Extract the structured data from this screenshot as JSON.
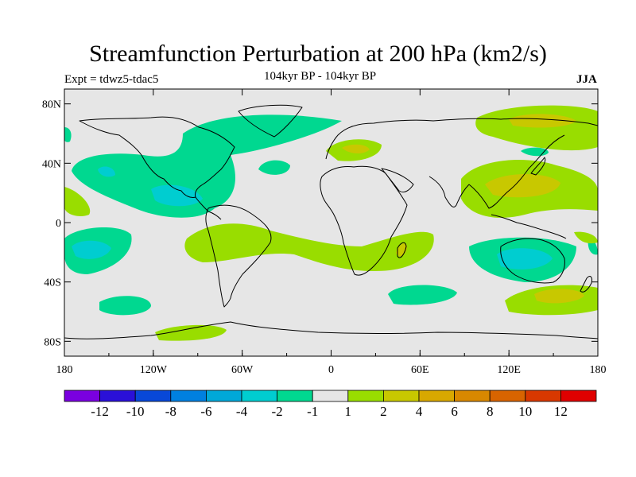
{
  "title": "Streamfunction Perturbation at 200 hPa (km2/s)",
  "experiment": "Expt = tdwz5-tdac5",
  "subtitle": "104kyr BP - 104kyr BP",
  "season": "JJA",
  "colors": {
    "land_ocean_bg": "#e6e6e6",
    "neg_1": "#00d890",
    "neg_2": "#00cdd0",
    "pos_1": "#99dd00",
    "pos_2": "#c8c800",
    "pos_3": "#d8a800"
  },
  "map": {
    "lon_range": [
      -180,
      180
    ],
    "lat_range": [
      -90,
      90
    ],
    "lon_ticks": [
      "180",
      "120W",
      "60W",
      "0",
      "60E",
      "120E",
      "180"
    ],
    "lat_ticks": [
      "80N",
      "40N",
      "0",
      "40S",
      "80S"
    ]
  },
  "colorbar": {
    "colors": [
      "#7a00e0",
      "#2a10d8",
      "#0848d8",
      "#0080e0",
      "#00a8d8",
      "#00cdd0",
      "#00d890",
      "#e6e6e6",
      "#99dd00",
      "#c8c800",
      "#d8a800",
      "#d88800",
      "#d86400",
      "#d83800",
      "#e00000"
    ],
    "labels": [
      "-12",
      "-10",
      "-8",
      "-6",
      "-4",
      "-2",
      "-1",
      "1",
      "2",
      "4",
      "6",
      "8",
      "10",
      "12"
    ]
  }
}
